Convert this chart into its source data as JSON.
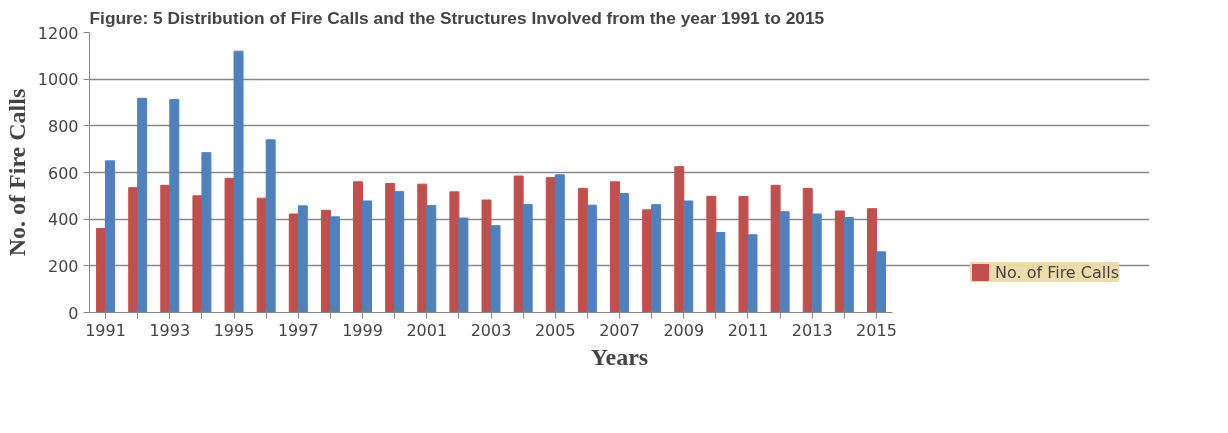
{
  "chart_data": {
    "type": "bar",
    "title": "Figure: 5 Distribution of Fire Calls and the Structures Involved from the year 1991 to 2015",
    "xlabel": "Years",
    "ylabel": "No. of Fire Calls",
    "categories": [
      "1991",
      null,
      "1993",
      null,
      "1995",
      null,
      "1997",
      null,
      "1999",
      null,
      "2001",
      null,
      "2003",
      null,
      "2005",
      null,
      "2007",
      null,
      "2009",
      null,
      "2011",
      null,
      "2013",
      null,
      "2015"
    ],
    "series": [
      {
        "name": "No. of Fire Calls",
        "color": "#c0504d",
        "values": [
          360,
          535,
          545,
          500,
          575,
          490,
          422,
          438,
          560,
          553,
          550,
          517,
          482,
          585,
          578,
          532,
          560,
          440,
          625,
          498,
          497,
          545,
          532,
          435,
          445
        ]
      },
      {
        "color": "#4f81bd",
        "values": [
          650,
          918,
          913,
          685,
          1120,
          740,
          457,
          410,
          478,
          518,
          458,
          405,
          372,
          463,
          590,
          460,
          510,
          462,
          478,
          343,
          333,
          432,
          422,
          407,
          260
        ]
      }
    ],
    "ylim": [
      0,
      1200
    ],
    "yticks": [
      0,
      200,
      400,
      600,
      800,
      1000,
      1200
    ],
    "grid": "y",
    "legend": "right"
  }
}
